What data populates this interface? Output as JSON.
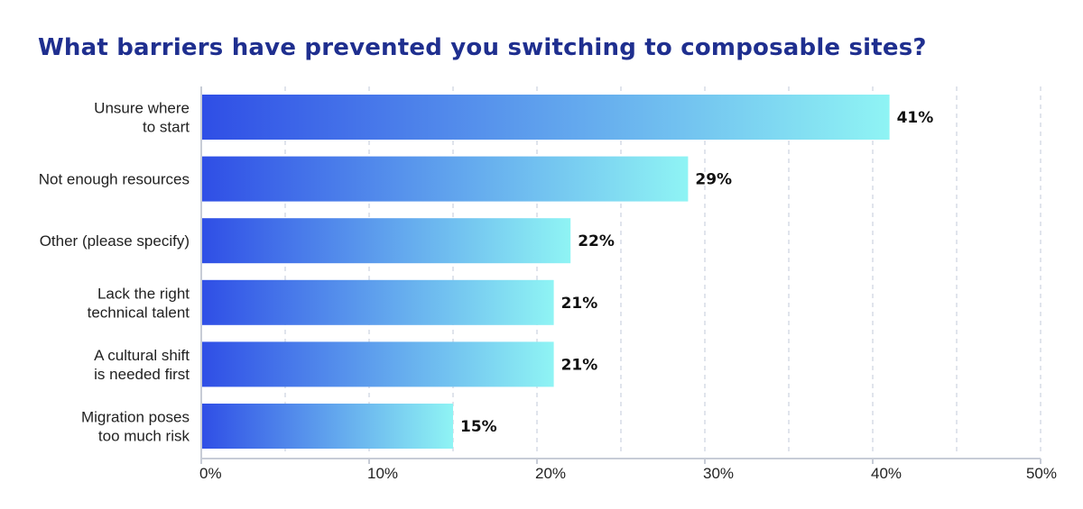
{
  "title": "What barriers have prevented you switching to composable sites?",
  "colors": {
    "bar_start": "#2f4ee6",
    "bar_end": "#8ff4f4",
    "grid": "#d6dbe6",
    "axis": "#c7ccd6",
    "title": "#1f2f8f"
  },
  "chart_data": {
    "type": "bar",
    "orientation": "horizontal",
    "title": "What barriers have prevented you switching to composable sites?",
    "categories": [
      [
        "Unsure where",
        "to start"
      ],
      [
        "Not enough resources"
      ],
      [
        "Other (please specify)"
      ],
      [
        "Lack the right",
        "technical talent"
      ],
      [
        "A cultural shift",
        "is needed first"
      ],
      [
        "Migration poses",
        "too much risk"
      ]
    ],
    "values": [
      41,
      29,
      22,
      21,
      21,
      15
    ],
    "value_labels": [
      "41%",
      "29%",
      "22%",
      "21%",
      "21%",
      "15%"
    ],
    "xlim": [
      0,
      50
    ],
    "x_ticks": [
      0,
      10,
      20,
      30,
      40,
      50
    ],
    "x_tick_labels": [
      "0%",
      "10%",
      "20%",
      "30%",
      "40%",
      "50%"
    ],
    "grid": "vertical dashed at every 5%",
    "legend": "none"
  }
}
